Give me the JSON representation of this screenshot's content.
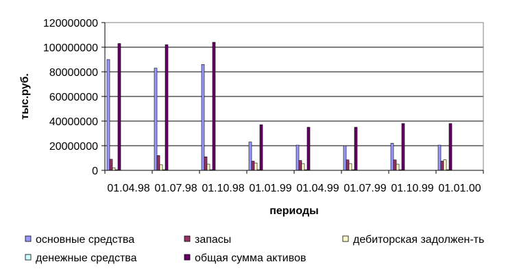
{
  "chart_data": {
    "type": "bar",
    "title": "",
    "xlabel": "периоды",
    "ylabel": "тыс.руб.",
    "ylim": [
      0,
      120000000
    ],
    "yticks": [
      0,
      20000000,
      40000000,
      60000000,
      80000000,
      100000000,
      120000000
    ],
    "ytick_labels": [
      "0",
      "20000000",
      "40000000",
      "60000000",
      "80000000",
      "100000000",
      "120000000"
    ],
    "grid": "horizontal",
    "legend_position": "bottom",
    "categories": [
      "01.04.98",
      "01.07.98",
      "01.10.98",
      "01.01.99",
      "01.04.99",
      "01.07.99",
      "01.10.99",
      "01.01.00"
    ],
    "series": [
      {
        "name": "основные средства",
        "color": "#9999FF",
        "values": [
          90000000,
          83000000,
          86000000,
          23000000,
          20500000,
          20000000,
          22000000,
          20500000
        ]
      },
      {
        "name": "запасы",
        "color": "#993366",
        "values": [
          9000000,
          12000000,
          11000000,
          7500000,
          8000000,
          8500000,
          8500000,
          7500000
        ]
      },
      {
        "name": "дебиторская задолжен-ть",
        "color": "#FFFFCC",
        "values": [
          2000000,
          4500000,
          5000000,
          6000000,
          5500000,
          5500000,
          5000000,
          8500000
        ]
      },
      {
        "name": "денежные средства",
        "color": "#CCFFFF",
        "values": [
          500000,
          500000,
          500000,
          500000,
          500000,
          500000,
          500000,
          500000
        ]
      },
      {
        "name": "общая сумма активов",
        "color": "#660066",
        "values": [
          103000000,
          102000000,
          104000000,
          37000000,
          35000000,
          35000000,
          38000000,
          38000000
        ]
      }
    ]
  }
}
